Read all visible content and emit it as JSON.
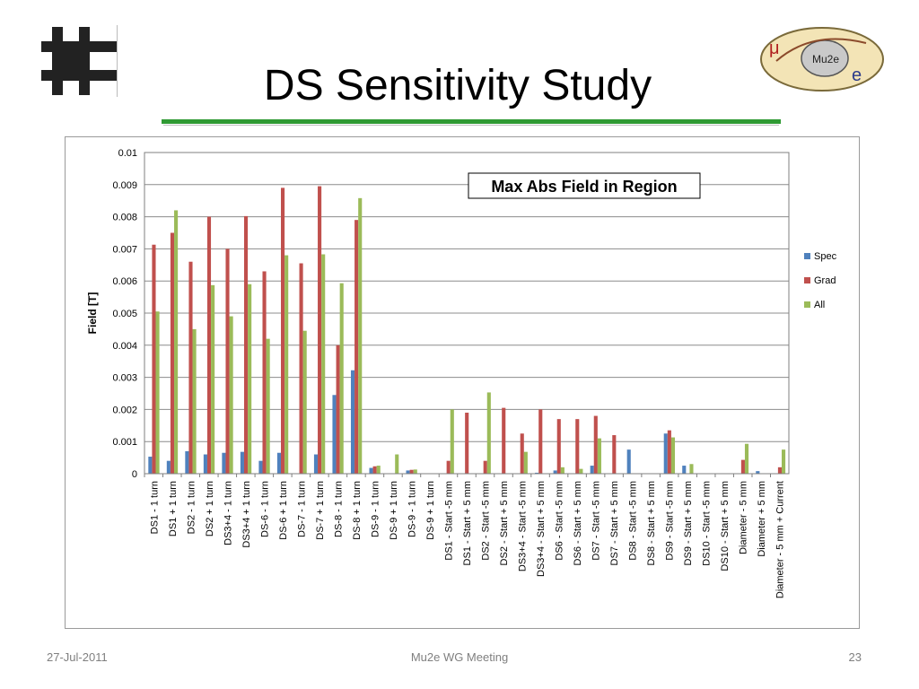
{
  "slide": {
    "title": "DS Sensitivity Study",
    "footer_date": "27-Jul-2011",
    "footer_center": "Mu2e WG Meeting",
    "page_number": "23",
    "logo_right_text": "Mu2e"
  },
  "chart_data": {
    "type": "bar",
    "annotation": "Max Abs Field in Region",
    "ylabel": "Field [T]",
    "xlabel": "",
    "ylim": [
      0,
      0.01
    ],
    "yticks": [
      "0",
      "0.001",
      "0.002",
      "0.003",
      "0.004",
      "0.005",
      "0.006",
      "0.007",
      "0.008",
      "0.009",
      "0.01"
    ],
    "grid": true,
    "legend_position": "right",
    "categories": [
      "DS1 - 1 turn",
      "DS1 + 1 turn",
      "DS2 - 1 turn",
      "DS2 + 1 turn",
      "DS3+4 - 1 turn",
      "DS3+4 + 1 turn",
      "DS-6 - 1 turn",
      "DS-6 + 1 turn",
      "DS-7 - 1 turn",
      "DS-7 + 1 turn",
      "DS-8 - 1 turn",
      "DS-8 + 1 turn",
      "DS-9 - 1 turn",
      "DS-9 + 1 turn",
      "DS-9 - 1 turn",
      "DS-9 + 1 turn",
      "DS1 - Start -5 mm",
      "DS1 - Start + 5 mm",
      "DS2 - Start -5 mm",
      "DS2 - Start + 5 mm",
      "DS3+4 - Start -5 mm",
      "DS3+4 - Start + 5 mm",
      "DS6 - Start -5 mm",
      "DS6 - Start + 5 mm",
      "DS7 - Start -5 mm",
      "DS7 - Start + 5 mm",
      "DS8 - Start -5 mm",
      "DS8 - Start + 5 mm",
      "DS9 - Start -5 mm",
      "DS9 - Start + 5 mm",
      "DS10 - Start -5 mm",
      "DS10 - Start + 5 mm",
      "Diameter - 5 mm",
      "Diameter + 5 mm",
      "Diameter - 5 mm + Current"
    ],
    "series": [
      {
        "name": "Spec",
        "color": "#4f81bd",
        "values": [
          0.00053,
          0.0004,
          0.0007,
          0.0006,
          0.00065,
          0.00068,
          0.0004,
          0.00065,
          0,
          0.0006,
          0.00245,
          0.00322,
          0.00018,
          0,
          0.0001,
          0,
          0,
          0,
          0,
          0,
          0,
          3e-05,
          0.0001,
          0,
          0.00025,
          0,
          0.00075,
          0,
          0.00125,
          0.00025,
          0,
          0,
          0,
          8e-05,
          0
        ]
      },
      {
        "name": "Grad",
        "color": "#c0504d",
        "values": [
          0.00713,
          0.0075,
          0.0066,
          0.008,
          0.007,
          0.00802,
          0.0063,
          0.0089,
          0.00655,
          0.00895,
          0.004,
          0.0079,
          0.00023,
          0,
          0.00012,
          0,
          0.0004,
          0.0019,
          0.0004,
          0.00205,
          0.00125,
          0.002,
          0.0017,
          0.0017,
          0.0018,
          0.0012,
          0,
          0,
          0.00135,
          0,
          0,
          0,
          0.00043,
          0,
          0.0002
        ]
      },
      {
        "name": "All",
        "color": "#9bbb59",
        "values": [
          0.00505,
          0.0082,
          0.0045,
          0.00587,
          0.0049,
          0.0059,
          0.0042,
          0.0068,
          0.00445,
          0.00683,
          0.00593,
          0.00858,
          0.00025,
          0.0006,
          0.00013,
          0,
          0.002,
          0,
          0.00253,
          0,
          0.00068,
          0,
          0.0002,
          0.00015,
          0.0011,
          0,
          0,
          0,
          0.00113,
          0.0003,
          0,
          0,
          0.00093,
          0,
          0.00075
        ]
      }
    ]
  }
}
